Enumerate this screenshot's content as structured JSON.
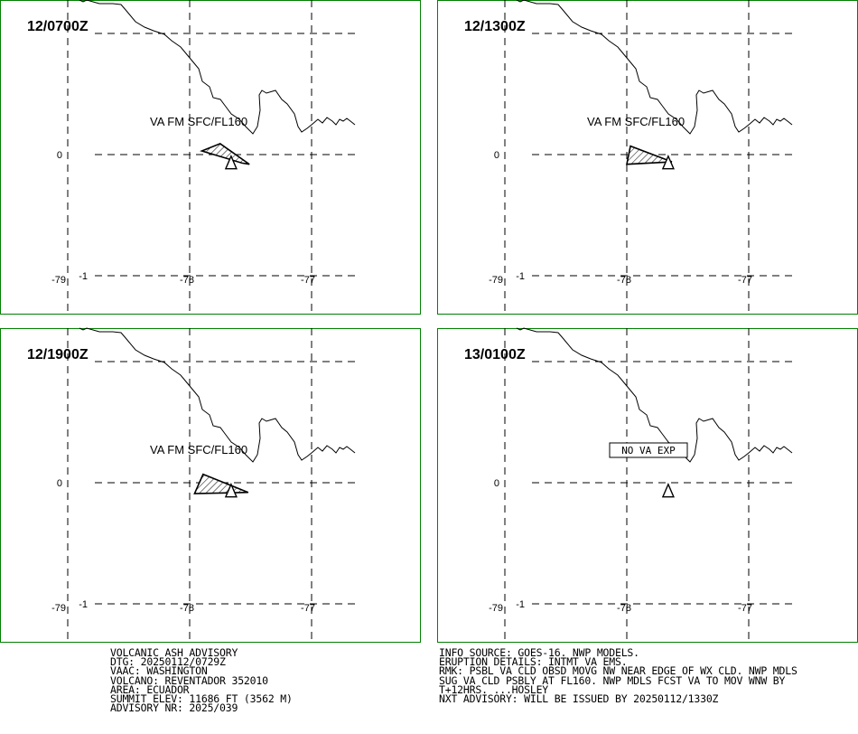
{
  "panels": [
    {
      "time": "12/0700Z",
      "label": "VA FM SFC/FL160",
      "ash": true,
      "no_va": false,
      "ash_polygon": [
        [
          -77.9,
          0.03
        ],
        [
          -77.75,
          0.09
        ],
        [
          -77.51,
          -0.08
        ],
        [
          -77.57,
          -0.07
        ],
        [
          -77.9,
          0.03
        ]
      ]
    },
    {
      "time": "12/1300Z",
      "label": "VA FM SFC/FL160",
      "ash": true,
      "no_va": false,
      "ash_polygon": [
        [
          -78.0,
          -0.08
        ],
        [
          -77.97,
          0.07
        ],
        [
          -77.63,
          -0.06
        ],
        [
          -78.0,
          -0.08
        ]
      ]
    },
    {
      "time": "12/1900Z",
      "label": "VA FM SFC/FL160",
      "ash": true,
      "no_va": false,
      "ash_polygon": [
        [
          -77.96,
          -0.09
        ],
        [
          -77.89,
          0.07
        ],
        [
          -77.52,
          -0.08
        ],
        [
          -77.96,
          -0.09
        ]
      ]
    },
    {
      "time": "13/0100Z",
      "label": "NO VA EXP",
      "ash": false,
      "no_va": true,
      "ash_polygon": []
    }
  ],
  "map": {
    "lon_ticks": [
      "-79",
      "-78",
      "-77"
    ],
    "lat_ticks": [
      "0",
      "-1"
    ],
    "lon_grid": [
      -79,
      -78,
      -77
    ],
    "lat_grid": [
      1,
      0,
      -1
    ],
    "volcano": {
      "lon": -77.66,
      "lat": -0.08
    },
    "colors": {
      "frame": "#008000",
      "lines": "#000000",
      "background": "#ffffff"
    }
  },
  "advisory_left": [
    "VOLCANIC ASH ADVISORY",
    "DTG: 20250112/0729Z",
    "VAAC: WASHINGTON",
    "VOLCANO: REVENTADOR 352010",
    "AREA: ECUADOR",
    "SUMMIT ELEV: 11686 FT (3562 M)",
    "ADVISORY NR: 2025/039"
  ],
  "advisory_right": [
    "INFO SOURCE: GOES-16. NWP MODELS.",
    "ERUPTION DETAILS: INTMT VA EMS.",
    "RMK: PSBL VA CLD OBSD MOVG NW NEAR EDGE OF WX CLD. NWP MDLS",
    "SUG VA CLD PSBLY AT FL160. NWP MDLS FCST VA TO MOV WNW BY",
    "T+12HRS. ...HOSLEY",
    "NXT ADVISORY: WILL BE ISSUED BY 20250112/1330Z"
  ]
}
